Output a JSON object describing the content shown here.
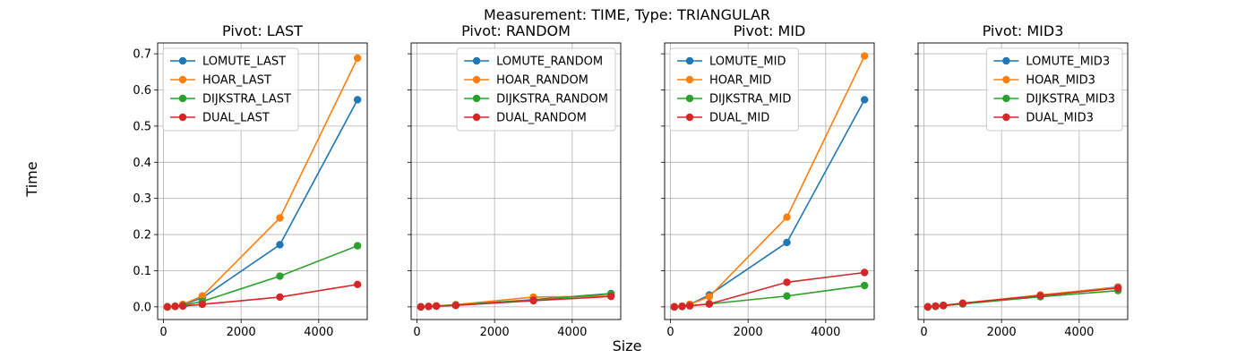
{
  "figure": {
    "suptitle": "Measurement: TIME, Type: TRIANGULAR",
    "xlabel": "Size",
    "ylabel": "Time"
  },
  "colors": {
    "blue": "#1f77b4",
    "orange": "#ff7f0e",
    "green": "#2ca02c",
    "red": "#d62728",
    "grid": "#b0b0b0"
  },
  "chart_data": [
    {
      "type": "line",
      "title": "Pivot: LAST",
      "x": [
        100,
        300,
        500,
        1000,
        3000,
        5000
      ],
      "xlim": [
        -150,
        5250
      ],
      "ylim": [
        -0.035,
        0.73
      ],
      "xticks": [
        0,
        2000,
        4000
      ],
      "yticks": [
        0.0,
        0.1,
        0.2,
        0.3,
        0.4,
        0.5,
        0.6,
        0.7
      ],
      "ytick_labels_visible": true,
      "grid": true,
      "legend_position": "top-left",
      "series": [
        {
          "name": "LOMUTE_LAST",
          "color": "#1f77b4",
          "values": [
            0.0,
            0.002,
            0.006,
            0.025,
            0.172,
            0.573
          ]
        },
        {
          "name": "HOAR_LAST",
          "color": "#ff7f0e",
          "values": [
            0.0,
            0.002,
            0.007,
            0.03,
            0.246,
            0.688
          ]
        },
        {
          "name": "DIJKSTRA_LAST",
          "color": "#2ca02c",
          "values": [
            0.0,
            0.001,
            0.004,
            0.015,
            0.085,
            0.169
          ]
        },
        {
          "name": "DUAL_LAST",
          "color": "#d62728",
          "values": [
            0.0,
            0.001,
            0.002,
            0.007,
            0.027,
            0.062
          ]
        }
      ]
    },
    {
      "type": "line",
      "title": "Pivot: RANDOM",
      "x": [
        100,
        300,
        500,
        1000,
        3000,
        5000
      ],
      "xlim": [
        -150,
        5250
      ],
      "ylim": [
        -0.035,
        0.73
      ],
      "xticks": [
        0,
        2000,
        4000
      ],
      "yticks": [
        0.0,
        0.1,
        0.2,
        0.3,
        0.4,
        0.5,
        0.6,
        0.7
      ],
      "ytick_labels_visible": false,
      "grid": true,
      "legend_position": "top-right",
      "series": [
        {
          "name": "LOMUTE_RANDOM",
          "color": "#1f77b4",
          "values": [
            0.0,
            0.001,
            0.002,
            0.005,
            0.02,
            0.037
          ]
        },
        {
          "name": "HOAR_RANDOM",
          "color": "#ff7f0e",
          "values": [
            0.0,
            0.001,
            0.003,
            0.006,
            0.027,
            0.03
          ]
        },
        {
          "name": "DIJKSTRA_RANDOM",
          "color": "#2ca02c",
          "values": [
            0.0,
            0.001,
            0.002,
            0.005,
            0.019,
            0.036
          ]
        },
        {
          "name": "DUAL_RANDOM",
          "color": "#d62728",
          "values": [
            0.0,
            0.001,
            0.002,
            0.004,
            0.017,
            0.029
          ]
        }
      ]
    },
    {
      "type": "line",
      "title": "Pivot: MID",
      "x": [
        100,
        300,
        500,
        1000,
        3000,
        5000
      ],
      "xlim": [
        -150,
        5250
      ],
      "ylim": [
        -0.035,
        0.73
      ],
      "xticks": [
        0,
        2000,
        4000
      ],
      "yticks": [
        0.0,
        0.1,
        0.2,
        0.3,
        0.4,
        0.5,
        0.6,
        0.7
      ],
      "ytick_labels_visible": false,
      "grid": true,
      "legend_position": "top-left",
      "series": [
        {
          "name": "LOMUTE_MID",
          "color": "#1f77b4",
          "values": [
            0.0,
            0.002,
            0.007,
            0.033,
            0.178,
            0.573
          ]
        },
        {
          "name": "HOAR_MID",
          "color": "#ff7f0e",
          "values": [
            0.0,
            0.002,
            0.007,
            0.028,
            0.248,
            0.694
          ]
        },
        {
          "name": "DIJKSTRA_MID",
          "color": "#2ca02c",
          "values": [
            0.0,
            0.001,
            0.003,
            0.008,
            0.03,
            0.059
          ]
        },
        {
          "name": "DUAL_MID",
          "color": "#d62728",
          "values": [
            0.0,
            0.001,
            0.003,
            0.008,
            0.068,
            0.095
          ]
        }
      ]
    },
    {
      "type": "line",
      "title": "Pivot: MID3",
      "x": [
        100,
        300,
        500,
        1000,
        3000,
        5000
      ],
      "xlim": [
        -150,
        5250
      ],
      "ylim": [
        -0.035,
        0.73
      ],
      "xticks": [
        0,
        2000,
        4000
      ],
      "yticks": [
        0.0,
        0.1,
        0.2,
        0.3,
        0.4,
        0.5,
        0.6,
        0.7
      ],
      "ytick_labels_visible": false,
      "grid": true,
      "legend_position": "top-right",
      "series": [
        {
          "name": "LOMUTE_MID3",
          "color": "#1f77b4",
          "values": [
            0.0,
            0.002,
            0.004,
            0.009,
            0.032,
            0.055
          ]
        },
        {
          "name": "HOAR_MID3",
          "color": "#ff7f0e",
          "values": [
            0.0,
            0.002,
            0.004,
            0.01,
            0.033,
            0.054
          ]
        },
        {
          "name": "DIJKSTRA_MID3",
          "color": "#2ca02c",
          "values": [
            0.0,
            0.001,
            0.003,
            0.008,
            0.028,
            0.045
          ]
        },
        {
          "name": "DUAL_MID3",
          "color": "#d62728",
          "values": [
            0.0,
            0.002,
            0.004,
            0.01,
            0.031,
            0.052
          ]
        }
      ]
    }
  ]
}
